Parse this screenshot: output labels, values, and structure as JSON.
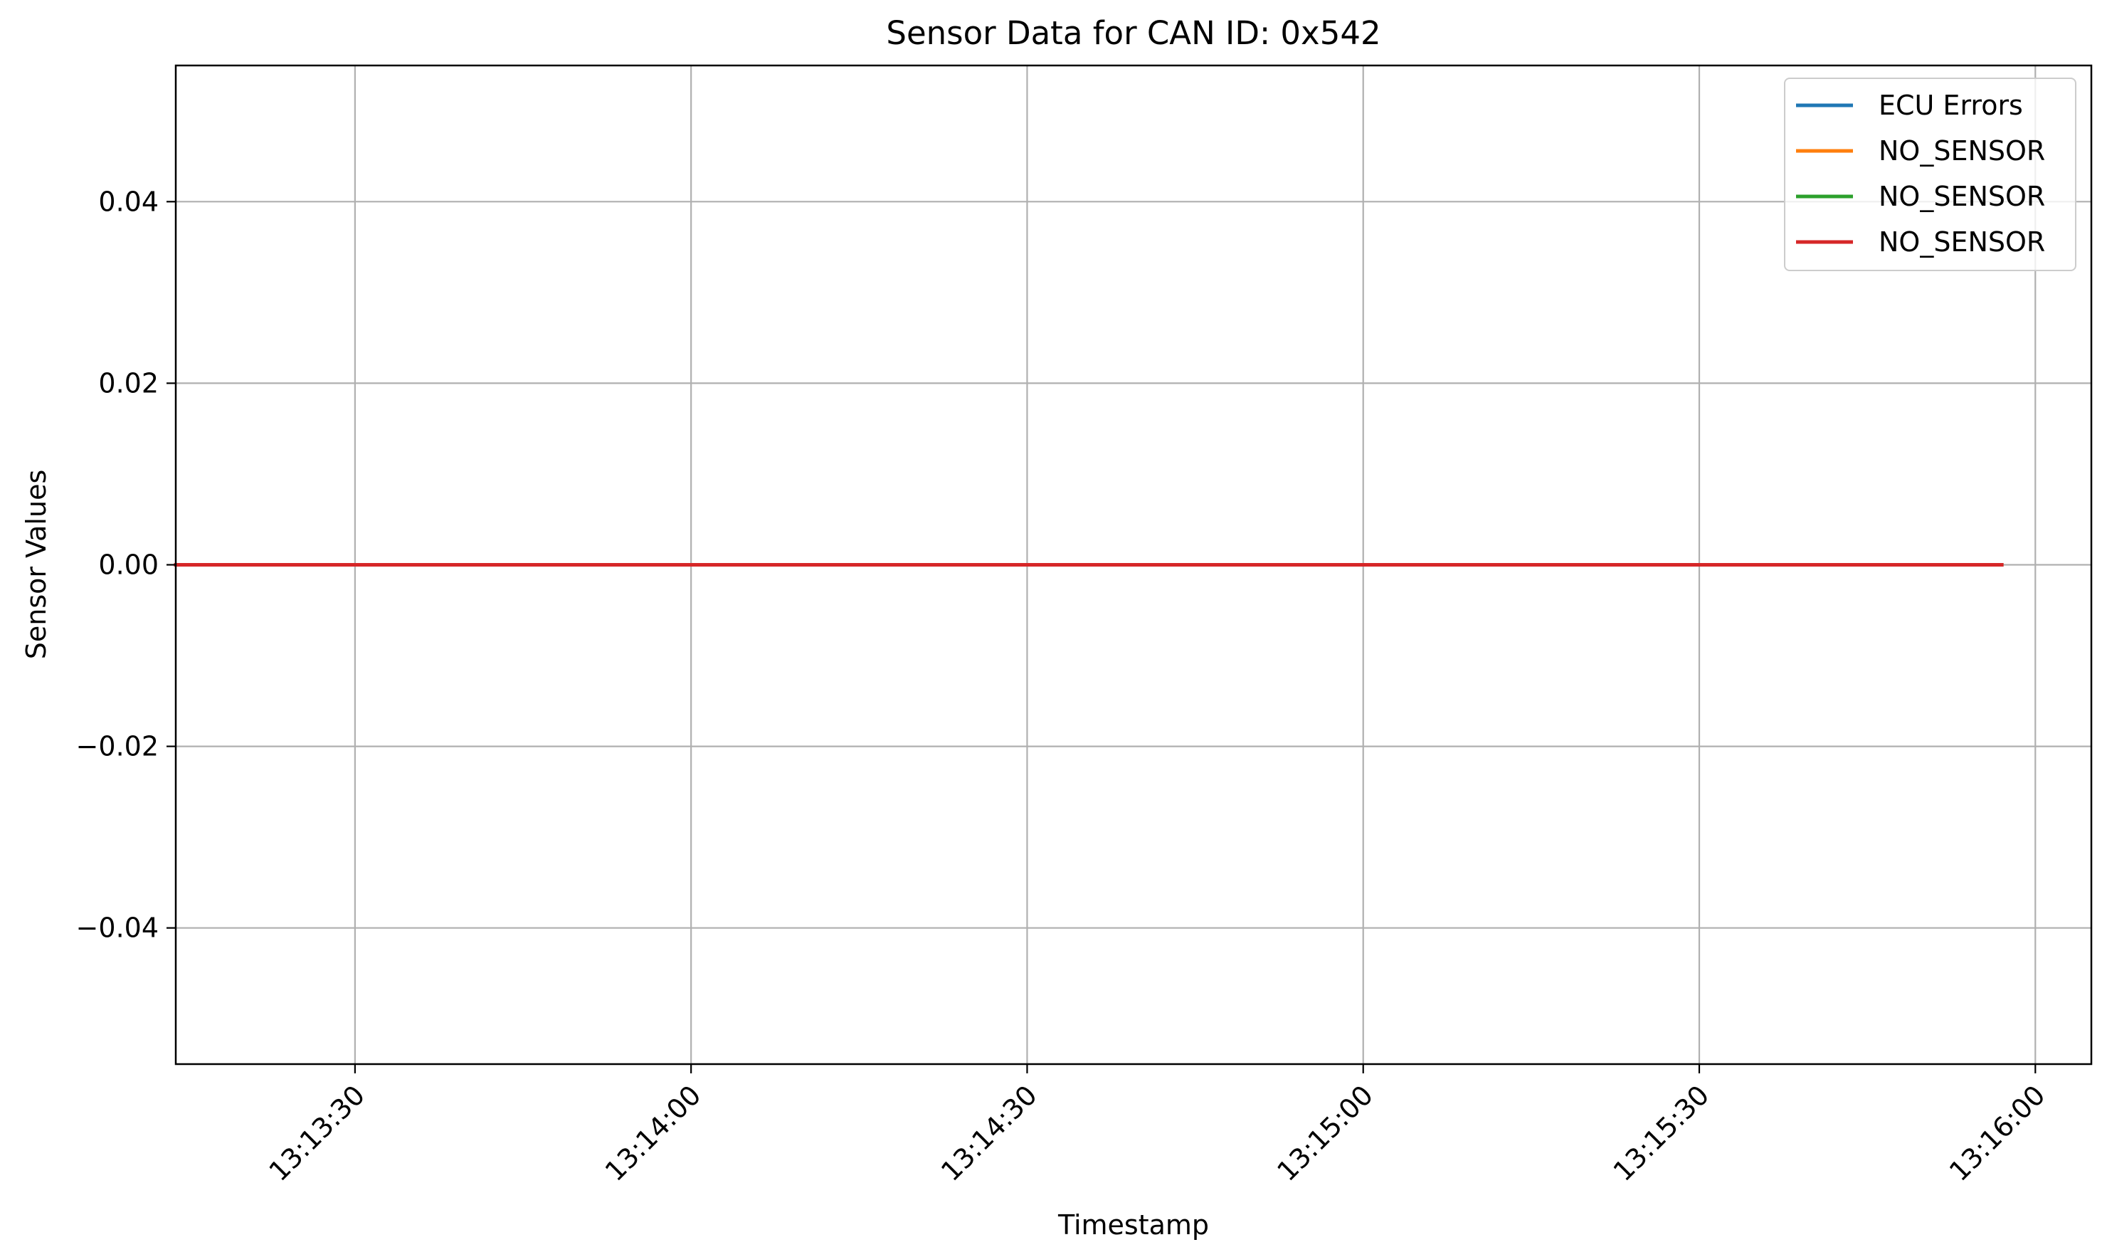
{
  "chart_data": {
    "type": "line",
    "title": "Sensor Data for CAN ID: 0x542",
    "xlabel": "Timestamp",
    "ylabel": "Sensor Values",
    "xlim": [
      "13:13:14",
      "13:16:05"
    ],
    "ylim": [
      -0.055,
      0.055
    ],
    "x_ticks": [
      "13:13:30",
      "13:14:00",
      "13:14:30",
      "13:15:00",
      "13:15:30",
      "13:16:00"
    ],
    "y_ticks": [
      0.04,
      0.02,
      0.0,
      -0.02,
      -0.04
    ],
    "y_tick_labels": [
      "0.04",
      "0.02",
      "0.00",
      "−0.02",
      "−0.04"
    ],
    "grid": true,
    "legend_position": "top-right",
    "series": [
      {
        "name": "ECU Errors",
        "color": "#1f77b4",
        "x": [
          "13:13:14",
          "13:15:57"
        ],
        "values": [
          0,
          0
        ]
      },
      {
        "name": "NO_SENSOR",
        "color": "#ff7f0e",
        "x": [
          "13:13:14",
          "13:15:57"
        ],
        "values": [
          0,
          0
        ]
      },
      {
        "name": "NO_SENSOR",
        "color": "#2ca02c",
        "x": [
          "13:13:14",
          "13:15:57"
        ],
        "values": [
          0,
          0
        ]
      },
      {
        "name": "NO_SENSOR",
        "color": "#d62728",
        "x": [
          "13:13:14",
          "13:15:57"
        ],
        "values": [
          0,
          0
        ]
      }
    ]
  }
}
